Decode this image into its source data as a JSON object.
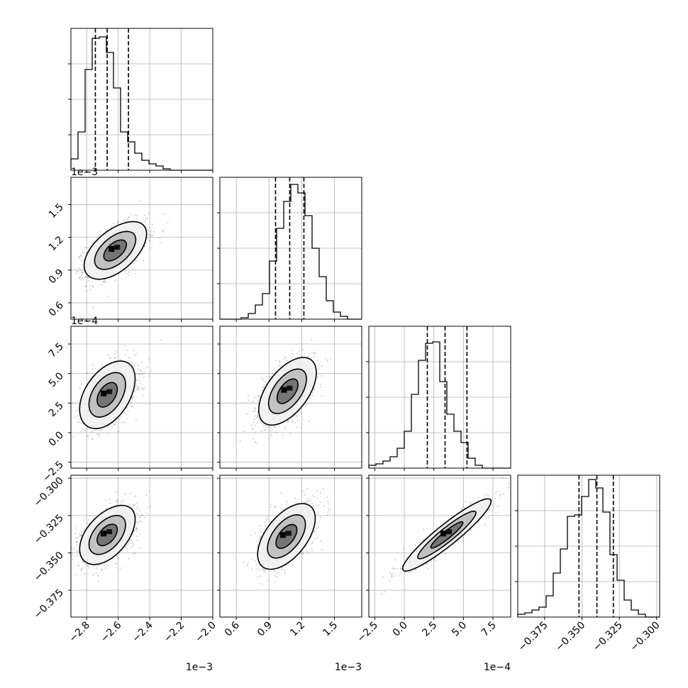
{
  "chart_data": {
    "type": "corner",
    "grid": true,
    "parameters": [
      {
        "range": [
          -2.9,
          -2.0
        ],
        "ticks": [
          -2.8,
          -2.6,
          -2.4,
          -2.2,
          -2.0
        ],
        "tick_labels": [
          "−2.8",
          "−2.6",
          "−2.4",
          "−2.2",
          "−2.0"
        ],
        "exponent_label": "1e−3",
        "quantiles": [
          -2.745,
          -2.67,
          -2.535
        ]
      },
      {
        "range": [
          0.45,
          1.75
        ],
        "ticks": [
          0.6,
          0.9,
          1.2,
          1.5
        ],
        "tick_labels": [
          "0.6",
          "0.9",
          "1.2",
          "1.5"
        ],
        "exponent_label": "1e−3",
        "quantiles": [
          0.96,
          1.09,
          1.22
        ]
      },
      {
        "range": [
          -3.0,
          9.0
        ],
        "ticks": [
          -2.5,
          0.0,
          2.5,
          5.0,
          7.5
        ],
        "tick_labels": [
          "−2.5",
          "0.0",
          "2.5",
          "5.0",
          "7.5"
        ],
        "exponent_label": "1e−4",
        "quantiles": [
          1.95,
          3.45,
          5.3
        ]
      },
      {
        "range": [
          -0.393,
          -0.298
        ],
        "ticks": [
          -0.375,
          -0.35,
          -0.325,
          -0.3
        ],
        "tick_labels": [
          "−0.375",
          "−0.350",
          "−0.325",
          "−0.300"
        ],
        "exponent_label": "",
        "quantiles": [
          -0.352,
          -0.34,
          -0.329
        ]
      }
    ],
    "histograms": [
      {
        "edges_start": -2.9,
        "bin_width": 0.045,
        "counts": [
          0.08,
          0.27,
          0.71,
          0.93,
          0.94,
          0.83,
          0.58,
          0.27,
          0.2,
          0.12,
          0.07,
          0.045,
          0.03,
          0.01,
          0.0,
          0.0,
          0.0,
          0.0,
          0.0,
          0.0
        ]
      },
      {
        "edges_start": 0.45,
        "bin_width": 0.065,
        "counts": [
          0.0,
          0.0,
          0.0,
          0.01,
          0.04,
          0.1,
          0.18,
          0.41,
          0.64,
          0.83,
          0.95,
          0.89,
          0.73,
          0.5,
          0.3,
          0.13,
          0.05,
          0.02,
          0.0,
          0.0
        ]
      },
      {
        "edges_start": -3.0,
        "bin_width": 0.6,
        "counts": [
          0.02,
          0.03,
          0.05,
          0.08,
          0.14,
          0.26,
          0.52,
          0.76,
          0.88,
          0.89,
          0.61,
          0.38,
          0.26,
          0.18,
          0.07,
          0.02,
          0.0,
          0.0,
          0.0,
          0.0
        ]
      },
      {
        "edges_start": -0.393,
        "bin_width": 0.00475,
        "counts": [
          0.02,
          0.03,
          0.05,
          0.07,
          0.15,
          0.31,
          0.48,
          0.71,
          0.72,
          0.85,
          0.97,
          0.91,
          0.74,
          0.44,
          0.26,
          0.12,
          0.05,
          0.02,
          0.0,
          0.0
        ]
      }
    ],
    "pairs": [
      {
        "row": 1,
        "col": 0,
        "mean": [
          -2.62,
          1.08
        ],
        "sd": [
          0.09,
          0.12
        ],
        "corr": 0.55,
        "skew_x": 0.05,
        "contour_levels": [
          2.2,
          1.45,
          0.8
        ]
      },
      {
        "row": 2,
        "col": 0,
        "mean": [
          -2.67,
          3.2
        ],
        "sd": [
          0.08,
          1.3
        ],
        "corr": 0.45,
        "skew_x": 0.05,
        "contour_levels": [
          2.2,
          1.45,
          0.8
        ]
      },
      {
        "row": 2,
        "col": 1,
        "mean": [
          1.07,
          3.5
        ],
        "sd": [
          0.12,
          1.3
        ],
        "corr": 0.55,
        "skew_x": 0.0,
        "contour_levels": [
          2.2,
          1.45,
          0.8
        ]
      },
      {
        "row": 3,
        "col": 0,
        "mean": [
          -2.67,
          -0.338
        ],
        "sd": [
          0.08,
          0.009
        ],
        "corr": 0.5,
        "skew_x": 0.05,
        "contour_levels": [
          2.2,
          1.45,
          0.8
        ]
      },
      {
        "row": 3,
        "col": 1,
        "mean": [
          1.06,
          -0.339
        ],
        "sd": [
          0.12,
          0.01
        ],
        "corr": 0.55,
        "skew_x": 0.0,
        "contour_levels": [
          2.2,
          1.45,
          0.8
        ]
      },
      {
        "row": 3,
        "col": 2,
        "mean": [
          3.6,
          -0.338
        ],
        "sd": [
          1.7,
          0.011
        ],
        "corr": 0.93,
        "skew_x": 0.0,
        "contour_levels": [
          2.2,
          1.45,
          0.8
        ]
      }
    ]
  }
}
